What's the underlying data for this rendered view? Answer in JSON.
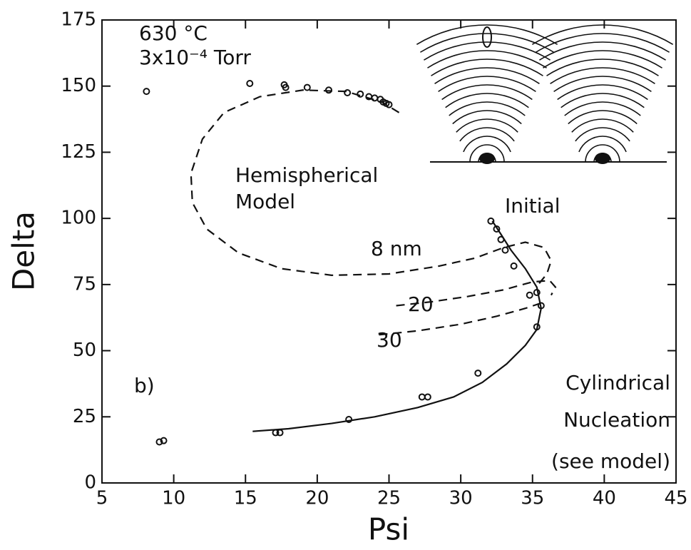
{
  "chart_data": {
    "type": "scatter",
    "x_label": "Psi",
    "y_label": "Delta",
    "xlim": [
      5,
      45
    ],
    "ylim": [
      0,
      175
    ],
    "xticks": [
      5,
      10,
      15,
      20,
      25,
      30,
      35,
      40,
      45
    ],
    "yticks": [
      0,
      25,
      50,
      75,
      100,
      125,
      150,
      175
    ],
    "annotations": [
      "630 °C",
      "3x10⁻⁴ Torr",
      "Hemispherical",
      "Model",
      "Initial",
      "8 nm",
      "20",
      "30",
      "b)",
      "Cylindrical",
      "Nucleation",
      "(see model)"
    ],
    "series": [
      {
        "type": "scatter",
        "color": "#111111",
        "x": [
          8.1,
          15.3,
          17.7,
          17.8,
          19.3,
          20.8,
          22.1,
          23.0,
          23.6,
          24.0,
          24.4,
          24.6,
          24.8,
          25.0,
          32.1,
          32.5,
          32.8,
          33.1,
          33.7,
          34.8,
          35.3,
          35.6,
          35.3,
          31.2,
          27.3,
          27.7,
          22.2,
          17.1,
          17.4,
          9.0,
          9.3
        ],
        "values": [
          148,
          151,
          150.5,
          149.5,
          149.5,
          148.5,
          147.5,
          147,
          146,
          145.5,
          145,
          144,
          143.5,
          143,
          99,
          96,
          92,
          88,
          82,
          71,
          72,
          67,
          59,
          41.5,
          32.5,
          32.5,
          24,
          19,
          19,
          15.5,
          16
        ]
      },
      {
        "type": "line",
        "dashed": true,
        "color": "#111111",
        "x": [
          25.7,
          24.5,
          22,
          19,
          16,
          13.5,
          12,
          11.2,
          11.3,
          12.3,
          14.5,
          17.5,
          21,
          25,
          28.5,
          31,
          33,
          34.5,
          35.8,
          36.3,
          36.0,
          35.4
        ],
        "values": [
          140,
          144,
          148,
          148.5,
          146,
          140,
          130,
          117,
          106,
          96,
          87,
          81,
          78.5,
          79,
          82,
          85,
          89,
          91,
          89,
          84,
          79,
          75
        ]
      },
      {
        "type": "line",
        "dashed": true,
        "color": "#111111",
        "x": [
          25.5,
          28,
          30.5,
          33,
          35,
          36.2,
          36.6,
          36.3
        ],
        "values": [
          67,
          68.5,
          70.5,
          73,
          76,
          76.5,
          74,
          71
        ]
      },
      {
        "type": "line",
        "dashed": true,
        "color": "#111111",
        "x": [
          24.3,
          27,
          30,
          32.5,
          34.5,
          35.6
        ],
        "values": [
          56,
          57.5,
          60,
          63,
          66,
          68
        ]
      },
      {
        "type": "line",
        "dashed": false,
        "color": "#111111",
        "x": [
          15.5,
          18,
          21,
          24,
          27,
          29.5,
          31.5,
          33.2,
          34.5,
          35.3,
          35.6,
          35.3,
          34.5,
          33.5,
          32.8,
          32.2
        ],
        "values": [
          19.5,
          20.5,
          22.5,
          25,
          28.5,
          32.5,
          38,
          45,
          52,
          58,
          66,
          74,
          81,
          88,
          94,
          99
        ]
      }
    ]
  }
}
